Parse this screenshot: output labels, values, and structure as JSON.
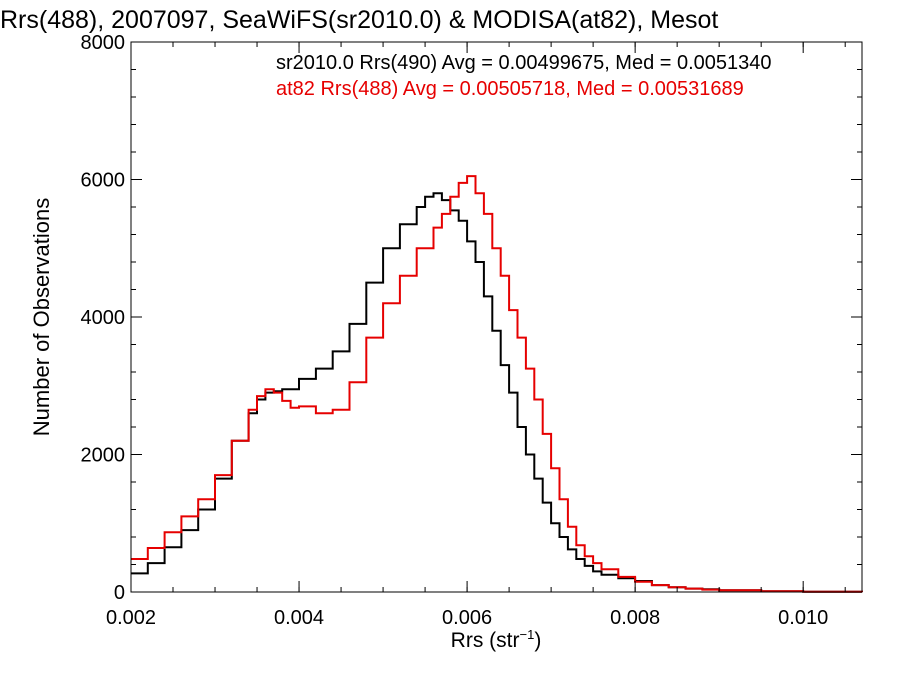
{
  "chart_data": {
    "type": "line",
    "title": "Rrs(488), 2007097, SeaWiFS(sr2010.0) & MODISA(at82), Mesot",
    "xlabel": "Rrs (str",
    "xlabel_sup": "−1",
    "xlabel_end": ")",
    "ylabel": "Number of Observations",
    "xlim": [
      0.002,
      0.0107
    ],
    "ylim": [
      0,
      8000
    ],
    "xticks": [
      0.002,
      0.004,
      0.006,
      0.008,
      0.01
    ],
    "xtick_labels": [
      "0.002",
      "0.004",
      "0.006",
      "0.008",
      "0.010"
    ],
    "yticks": [
      0,
      2000,
      4000,
      6000,
      8000
    ],
    "ytick_labels": [
      "0",
      "2000",
      "4000",
      "6000",
      "8000"
    ],
    "grid": false,
    "legend": "top",
    "series": [
      {
        "name": "sr2010.0 Rrs(490)",
        "label": "sr2010.0 Rrs(490) Avg = 0.00499675, Med = 0.0051340",
        "color": "#000000",
        "x": [
          0.002,
          0.0022,
          0.0024,
          0.0026,
          0.0028,
          0.003,
          0.0032,
          0.0034,
          0.0035,
          0.0036,
          0.0037,
          0.0038,
          0.004,
          0.0042,
          0.0044,
          0.0046,
          0.0048,
          0.005,
          0.0052,
          0.0054,
          0.0055,
          0.0056,
          0.0057,
          0.0058,
          0.0059,
          0.006,
          0.0061,
          0.0062,
          0.0063,
          0.0064,
          0.0065,
          0.0066,
          0.0067,
          0.0068,
          0.0069,
          0.007,
          0.0071,
          0.0072,
          0.0073,
          0.0074,
          0.0075,
          0.0076,
          0.0078,
          0.008,
          0.0082,
          0.0084,
          0.0086,
          0.0088,
          0.009,
          0.0095,
          0.01,
          0.0107
        ],
        "y": [
          270,
          420,
          650,
          900,
          1200,
          1650,
          2200,
          2600,
          2800,
          2900,
          2920,
          2950,
          3100,
          3250,
          3500,
          3900,
          4500,
          5000,
          5350,
          5600,
          5750,
          5800,
          5700,
          5550,
          5400,
          5100,
          4800,
          4300,
          3800,
          3300,
          2900,
          2400,
          2000,
          1650,
          1300,
          1000,
          800,
          620,
          480,
          380,
          300,
          250,
          200,
          160,
          100,
          70,
          50,
          40,
          25,
          10,
          5,
          0
        ]
      },
      {
        "name": "at82 Rrs(488)",
        "label": "at82 Rrs(488) Avg = 0.00505718, Med = 0.00531689",
        "color": "#e60000",
        "x": [
          0.002,
          0.0022,
          0.0024,
          0.0026,
          0.0028,
          0.003,
          0.0032,
          0.0034,
          0.0035,
          0.0036,
          0.0037,
          0.0038,
          0.0039,
          0.004,
          0.0042,
          0.0044,
          0.0046,
          0.0048,
          0.005,
          0.0052,
          0.0054,
          0.0056,
          0.0057,
          0.0058,
          0.0059,
          0.006,
          0.0061,
          0.0062,
          0.0063,
          0.0064,
          0.0065,
          0.0066,
          0.0067,
          0.0068,
          0.0069,
          0.007,
          0.0071,
          0.0072,
          0.0073,
          0.0074,
          0.0075,
          0.0076,
          0.0078,
          0.008,
          0.0082,
          0.0084,
          0.0086,
          0.0088,
          0.009,
          0.0095,
          0.01,
          0.0107
        ],
        "y": [
          480,
          640,
          870,
          1100,
          1350,
          1700,
          2200,
          2650,
          2850,
          2950,
          2900,
          2780,
          2680,
          2700,
          2600,
          2650,
          3050,
          3700,
          4200,
          4600,
          5000,
          5300,
          5500,
          5750,
          5950,
          6050,
          5800,
          5500,
          5000,
          4600,
          4100,
          3700,
          3250,
          2800,
          2300,
          1800,
          1350,
          950,
          680,
          520,
          420,
          330,
          220,
          150,
          100,
          70,
          50,
          35,
          25,
          12,
          5,
          0
        ]
      }
    ]
  }
}
